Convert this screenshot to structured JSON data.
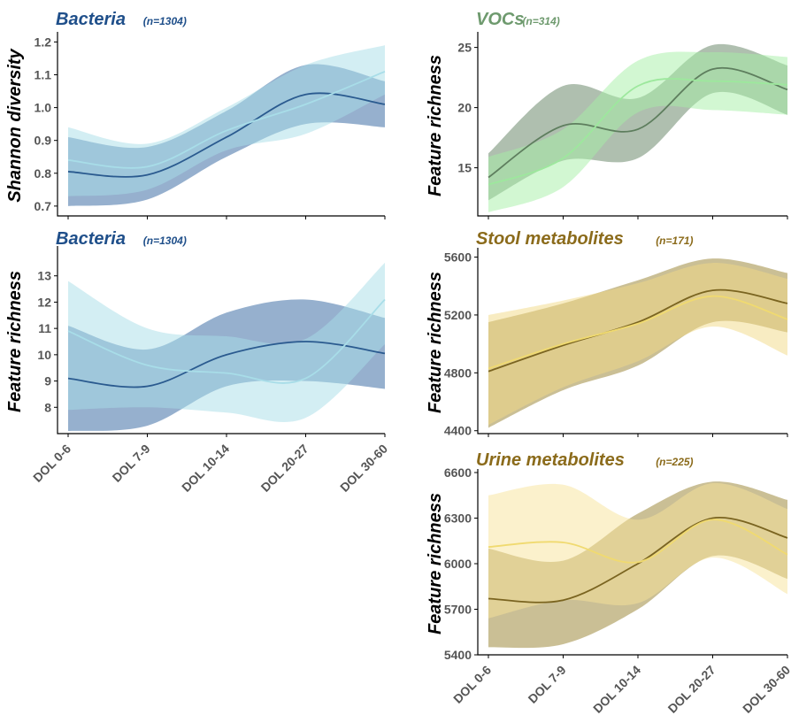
{
  "chart_data": [
    {
      "type": "line",
      "title": "Bacteria",
      "subtitle": "(n=1304)",
      "title_color": "#1f4f8a",
      "ylabel": "Shannon diversity",
      "categories": [
        "DOL 0-6",
        "DOL 7-9",
        "DOL 10-14",
        "DOL 20-27",
        "DOL 30-60"
      ],
      "ylim": [
        0.67,
        1.22
      ],
      "yticks": [
        "0.7",
        "0.8",
        "0.9",
        "1.0",
        "1.1",
        "1.2"
      ],
      "series": [
        {
          "color": "#2a5a8f",
          "fill": "#3f6fa6",
          "values": [
            0.805,
            0.795,
            0.91,
            1.04,
            1.01
          ],
          "lower": [
            0.7,
            0.72,
            0.85,
            0.95,
            0.94
          ],
          "upper": [
            0.91,
            0.88,
            0.99,
            1.13,
            1.08
          ]
        },
        {
          "color": "#a8dde8",
          "fill": "#a8dde8",
          "values": [
            0.84,
            0.82,
            0.93,
            1.01,
            1.11
          ],
          "lower": [
            0.73,
            0.75,
            0.87,
            0.92,
            1.04
          ],
          "upper": [
            0.94,
            0.89,
            1.0,
            1.13,
            1.19
          ]
        }
      ]
    },
    {
      "type": "line",
      "title": "Bacteria",
      "subtitle": "(n=1304)",
      "title_color": "#1f4f8a",
      "ylabel": "Feature richness",
      "categories": [
        "DOL 0-6",
        "DOL 7-9",
        "DOL 10-14",
        "DOL 20-27",
        "DOL 30-60"
      ],
      "ylim": [
        7,
        14
      ],
      "yticks": [
        "8",
        "9",
        "10",
        "11",
        "12",
        "13"
      ],
      "series": [
        {
          "color": "#2a5a8f",
          "fill": "#3f6fa6",
          "values": [
            9.1,
            8.8,
            10.0,
            10.5,
            10.05
          ],
          "lower": [
            7.1,
            7.3,
            8.8,
            9.0,
            8.7
          ],
          "upper": [
            11.1,
            10.2,
            11.6,
            12.1,
            11.4
          ]
        },
        {
          "color": "#a8dde8",
          "fill": "#a8dde8",
          "values": [
            10.9,
            9.6,
            9.3,
            9.1,
            12.1
          ],
          "lower": [
            7.9,
            8.0,
            7.8,
            7.6,
            10.4
          ],
          "upper": [
            12.8,
            11.0,
            10.7,
            10.6,
            13.5
          ]
        }
      ]
    },
    {
      "type": "line",
      "title": "VOCs",
      "subtitle": "(n=314)",
      "title_color": "#6e9a6e",
      "ylabel": "Feature richness",
      "categories": [
        "DOL 0-6",
        "DOL 7-9",
        "DOL 10-14",
        "DOL 20-27",
        "DOL 30-60"
      ],
      "ylim": [
        11,
        26
      ],
      "yticks": [
        "15",
        "20",
        "25"
      ],
      "series": [
        {
          "color": "#5e7e5e",
          "fill": "#6d8a6d",
          "values": [
            14.2,
            18.5,
            18.2,
            23.2,
            21.5
          ],
          "lower": [
            12.3,
            15.6,
            15.8,
            21.2,
            19.4
          ],
          "upper": [
            16.2,
            21.8,
            20.8,
            25.2,
            23.5
          ]
        },
        {
          "color": "#9de89d",
          "fill": "#a6f0a6",
          "values": [
            13.6,
            15.8,
            21.8,
            22.2,
            21.9
          ],
          "lower": [
            11.3,
            13.4,
            19.6,
            19.8,
            19.4
          ],
          "upper": [
            15.9,
            18.2,
            23.9,
            24.6,
            24.2
          ]
        }
      ]
    },
    {
      "type": "line",
      "title": "Stool metabolites",
      "subtitle": "(n=171)",
      "title_color": "#8b6b1b",
      "ylabel": "Feature richness",
      "categories": [
        "DOL 0-6",
        "DOL 7-9",
        "DOL 10-14",
        "DOL 20-27",
        "DOL 30-60"
      ],
      "ylim": [
        4380,
        5640
      ],
      "yticks": [
        "4400",
        "4800",
        "5200",
        "5600"
      ],
      "series": [
        {
          "color": "#7a6420",
          "fill": "#9e8a3e",
          "values": [
            4810,
            4990,
            5150,
            5370,
            5280
          ],
          "lower": [
            4420,
            4680,
            4850,
            5150,
            5080
          ],
          "upper": [
            5150,
            5280,
            5440,
            5590,
            5490
          ]
        },
        {
          "color": "#f0da70",
          "fill": "#f2d985",
          "values": [
            4830,
            5000,
            5140,
            5330,
            5170
          ],
          "lower": [
            4440,
            4700,
            4880,
            5120,
            4920
          ],
          "upper": [
            5200,
            5300,
            5420,
            5560,
            5450
          ]
        }
      ]
    },
    {
      "type": "line",
      "title": "Urine metabolites",
      "subtitle": "(n=225)",
      "title_color": "#8b6b1b",
      "ylabel": "Feature richness",
      "categories": [
        "DOL 0-6",
        "DOL 7-9",
        "DOL 10-14",
        "DOL 20-27",
        "DOL 30-60"
      ],
      "ylim": [
        5400,
        6600
      ],
      "yticks": [
        "5400",
        "5700",
        "6000",
        "6300",
        "6600"
      ],
      "series": [
        {
          "color": "#7a6420",
          "fill": "#9e8a3e",
          "values": [
            5770,
            5760,
            6000,
            6300,
            6170
          ],
          "lower": [
            5450,
            5470,
            5700,
            6050,
            5900
          ],
          "upper": [
            6100,
            6020,
            6330,
            6540,
            6420
          ]
        },
        {
          "color": "#f0da70",
          "fill": "#f7e49a",
          "values": [
            6110,
            6140,
            6010,
            6290,
            6060
          ],
          "lower": [
            5640,
            5760,
            5740,
            6040,
            5800
          ],
          "upper": [
            6450,
            6520,
            6290,
            6530,
            6360
          ]
        }
      ]
    }
  ]
}
